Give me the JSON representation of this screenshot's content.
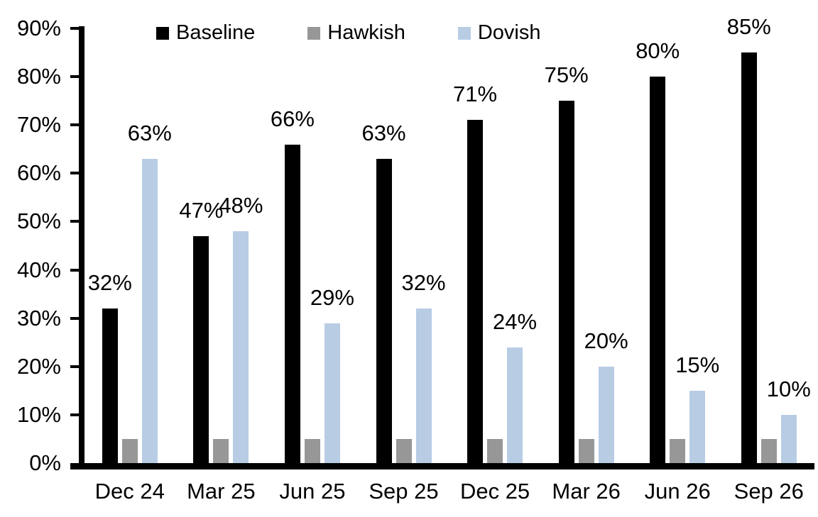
{
  "chart_data": {
    "type": "bar",
    "title": "",
    "xlabel": "",
    "ylabel": "",
    "grid": false,
    "categories": [
      "Dec 24",
      "Mar 25",
      "Jun 25",
      "Sep 25",
      "Dec 25",
      "Mar 26",
      "Jun 26",
      "Sep 26"
    ],
    "series": [
      {
        "name": "Baseline",
        "color": "#000000",
        "values": [
          32,
          47,
          66,
          63,
          71,
          75,
          80,
          85
        ],
        "data_labels": [
          "32%",
          "47%",
          "66%",
          "63%",
          "71%",
          "75%",
          "80%",
          "85%"
        ]
      },
      {
        "name": "Hawkish",
        "color": "#979797",
        "values": [
          5,
          5,
          5,
          5,
          5,
          5,
          5,
          5
        ],
        "data_labels": null
      },
      {
        "name": "Dovish",
        "color": "#B8CCE4",
        "values": [
          63,
          48,
          29,
          32,
          24,
          20,
          15,
          10
        ],
        "data_labels": [
          "63%",
          "48%",
          "29%",
          "32%",
          "24%",
          "20%",
          "15%",
          "10%"
        ]
      }
    ],
    "ylim": [
      0,
      90
    ],
    "ytick_values": [
      0,
      10,
      20,
      30,
      40,
      50,
      60,
      70,
      80,
      90
    ],
    "ytick_labels": [
      "0%",
      "10%",
      "20%",
      "30%",
      "40%",
      "50%",
      "60%",
      "70%",
      "80%",
      "90%"
    ],
    "legend": {
      "position": "top",
      "entries": [
        "Baseline",
        "Hawkish",
        "Dovish"
      ]
    }
  }
}
